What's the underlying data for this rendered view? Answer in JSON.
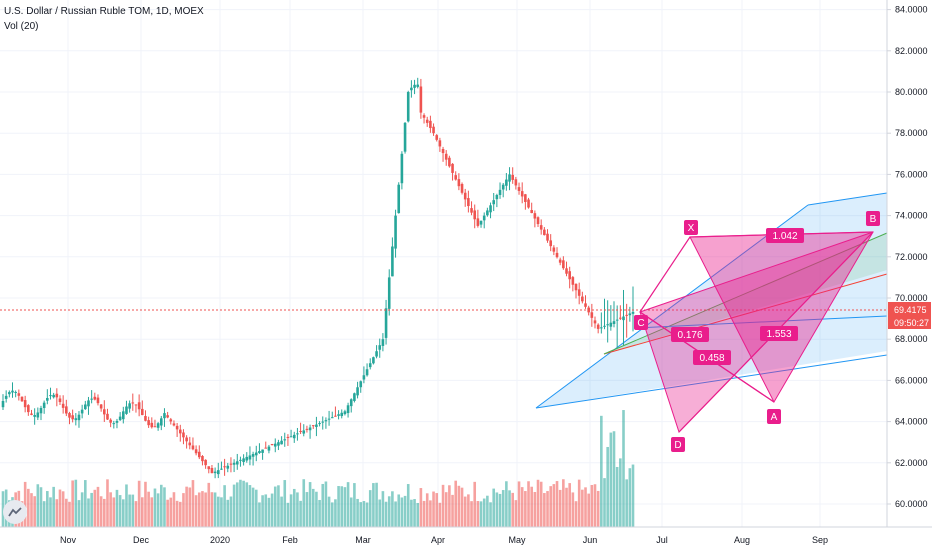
{
  "header": {
    "symbol_line": "U.S. Dollar / Russian Ruble TOM, 1D, MOEX",
    "volume_label": "Vol (20)"
  },
  "price_badge": {
    "value": "69.4175",
    "time": "09:50:27",
    "color": "#ef5350"
  },
  "colors": {
    "up": "#26a69a",
    "down": "#ef5350",
    "pattern": "#e91e8c",
    "channel_blue": "#2196f3",
    "channel_green": "#4caf50",
    "channel_red": "#f44336"
  },
  "chart_data": {
    "type": "candlestick",
    "ylim": [
      59,
      84.5
    ],
    "yticks": [
      "84.0000",
      "82.0000",
      "80.0000",
      "78.0000",
      "76.0000",
      "74.0000",
      "72.0000",
      "70.0000",
      "68.0000",
      "66.0000",
      "64.0000",
      "62.0000",
      "60.0000"
    ],
    "xticks": [
      "Nov",
      "Dec",
      "2020",
      "Feb",
      "Mar",
      "Apr",
      "May",
      "Jun",
      "Jul",
      "Aug",
      "Sep"
    ],
    "current_price": 69.4175,
    "price_segments": [
      {
        "from": "Oct",
        "to": "mid Dec",
        "start": 65.0,
        "end": 64.2,
        "range": [
          63.3,
          65.2
        ]
      },
      {
        "from": "mid Dec",
        "to": "early Jan",
        "start": 64.2,
        "end": 61.5
      },
      {
        "from": "early Jan",
        "to": "late Feb",
        "start": 61.5,
        "end": 64.5
      },
      {
        "from": "late Feb",
        "to": "early Mar",
        "start": 64.5,
        "end": 68.0
      },
      {
        "from": "early Mar",
        "to": "mid Mar",
        "start": 68.0,
        "end": 80.0
      },
      {
        "from": "mid Mar",
        "to": "late Mar",
        "start": 80.0,
        "end": 78.0,
        "high": 82.0
      },
      {
        "from": "late Mar",
        "to": "mid Apr",
        "start": 78.0,
        "end": 73.5
      },
      {
        "from": "mid Apr",
        "to": "late Apr",
        "start": 73.5,
        "end": 76.0
      },
      {
        "from": "late Apr",
        "to": "early Jun",
        "start": 76.0,
        "end": 68.5
      },
      {
        "from": "early Jun",
        "to": "mid Jun",
        "start": 68.5,
        "end": 69.4
      }
    ],
    "pattern_points": [
      {
        "label": "X",
        "price": 73.0
      },
      {
        "label": "A",
        "price": 64.8
      },
      {
        "label": "B",
        "price": 73.2
      },
      {
        "label": "C",
        "price": 69.4
      },
      {
        "label": "D",
        "price": 63.4
      }
    ],
    "ratios": [
      "1.042",
      "0.176",
      "1.553",
      "0.458"
    ]
  }
}
